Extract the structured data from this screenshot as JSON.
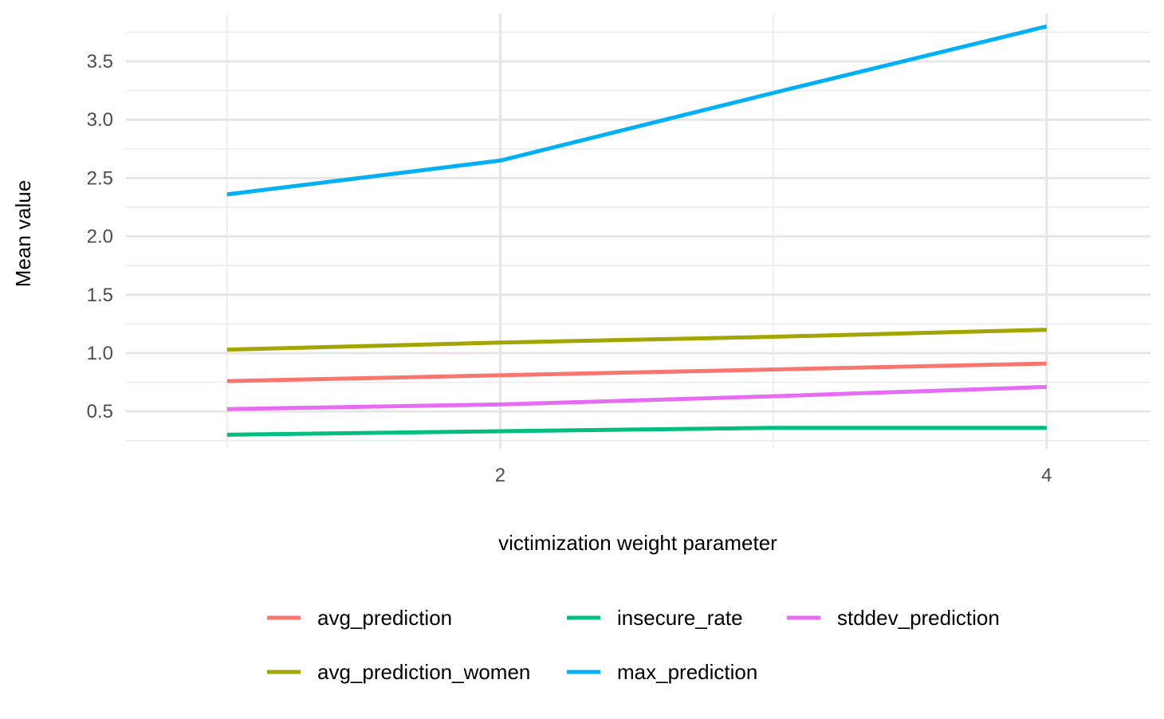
{
  "chart_data": {
    "type": "line",
    "title": "",
    "xlabel": "victimization weight parameter",
    "ylabel": "Mean value",
    "x": [
      1,
      2,
      3,
      4
    ],
    "xlim": [
      0.63,
      4.38
    ],
    "ylim": [
      0.18,
      3.91
    ],
    "x_ticks": [
      {
        "value": 2,
        "label": "2"
      },
      {
        "value": 4,
        "label": "4"
      }
    ],
    "x_minor_ticks": [
      1,
      3
    ],
    "y_ticks": [
      {
        "value": 0.5,
        "label": "0.5"
      },
      {
        "value": 1.0,
        "label": "1.0"
      },
      {
        "value": 1.5,
        "label": "1.5"
      },
      {
        "value": 2.0,
        "label": "2.0"
      },
      {
        "value": 2.5,
        "label": "2.5"
      },
      {
        "value": 3.0,
        "label": "3.0"
      },
      {
        "value": 3.5,
        "label": "3.5"
      }
    ],
    "y_minor_ticks": [
      0.25,
      0.75,
      1.25,
      1.75,
      2.25,
      2.75,
      3.25,
      3.75
    ],
    "grid": true,
    "legend_position": "bottom",
    "series": [
      {
        "name": "avg_prediction",
        "color": "#F8766D",
        "values": [
          0.76,
          0.81,
          0.86,
          0.91
        ]
      },
      {
        "name": "avg_prediction_women",
        "color": "#A3A500",
        "values": [
          1.03,
          1.09,
          1.14,
          1.2
        ]
      },
      {
        "name": "insecure_rate",
        "color": "#00BF7D",
        "values": [
          0.3,
          0.33,
          0.36,
          0.36
        ]
      },
      {
        "name": "max_prediction",
        "color": "#00B0F6",
        "values": [
          2.36,
          2.65,
          3.23,
          3.8
        ]
      },
      {
        "name": "stddev_prediction",
        "color": "#E76BF3",
        "values": [
          0.52,
          0.56,
          0.63,
          0.71
        ]
      }
    ]
  }
}
